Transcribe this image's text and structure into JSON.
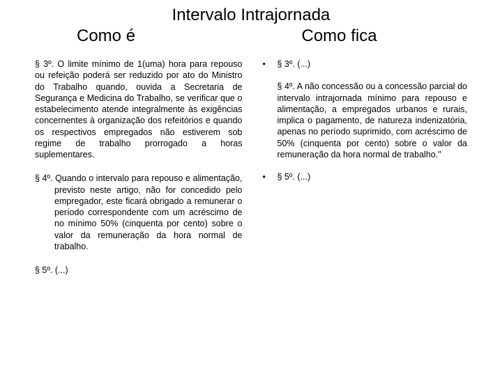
{
  "title": "Intervalo Intrajornada",
  "subtitle_left": "Como é",
  "subtitle_right": "Como fica",
  "left": {
    "p3": "§ 3º. O limite mínimo de 1(uma) hora para repouso ou refeição poderá ser reduzido por ato do Ministro do Trabalho quando, ouvida a Secretaria de Segurança e Medicina do Trabalho, se verificar que o estabelecimento atende integralmente às exigências concernentes à organização dos refeitórios e quando os respectivos empregados não estiverem sob regime de trabalho prorrogado a horas suplementares.",
    "p4": "§ 4º. Quando o intervalo para repouso e alimentação, previsto neste artigo, não for concedido pelo empregador, este ficará obrigado a remunerar o período correspondente com um acréscimo de no mínimo 50% (cinquenta por cento) sobre o valor da remuneração da hora normal de trabalho.",
    "p5": "§ 5º. (...)"
  },
  "right": {
    "b1_mark": "•",
    "b1_text": "§ 3º. (...)",
    "p4": "§ 4º. A não concessão ou a concessão parcial do intervalo intrajornada mínimo para repouso e alimentação, a empregados urbanos e rurais, implica o pagamento, de natureza indenizatória, apenas no período suprimido, com acréscimo de 50% (cinquenta por cento) sobre o valor da remuneração da hora normal de trabalho.\"",
    "b2_mark": "•",
    "b2_text": "§ 5º. (...)"
  },
  "colors": {
    "text": "#000000",
    "background": "#ffffff"
  },
  "fonts": {
    "title_size": 24,
    "body_size": 12.5
  }
}
